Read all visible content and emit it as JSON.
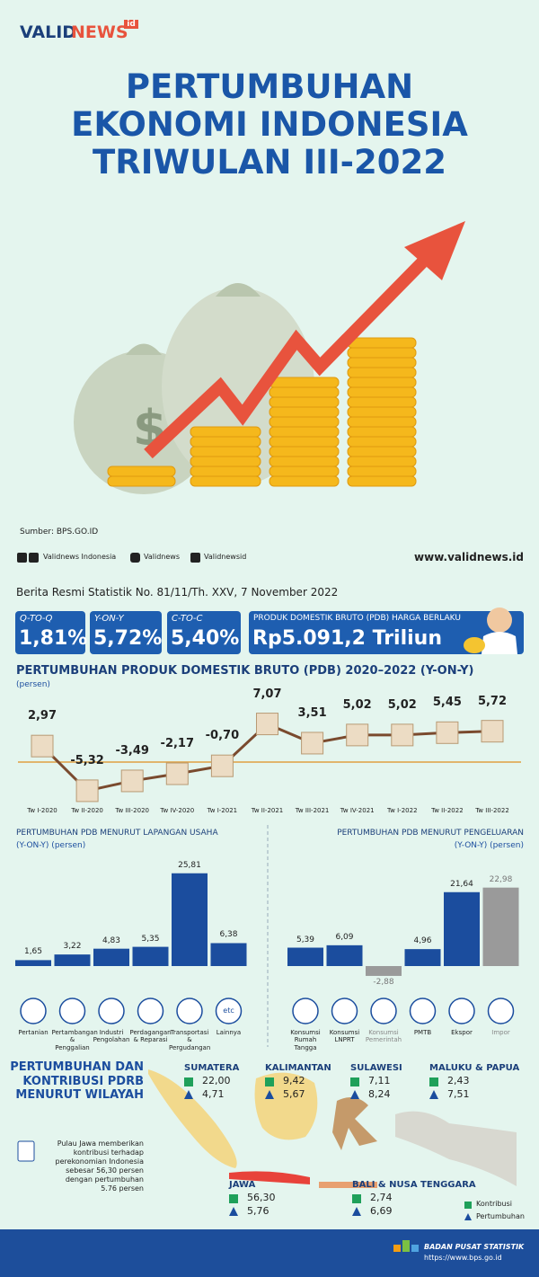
{
  "header": {
    "logo": [
      "VALID",
      "NEWS"
    ],
    "logo_badge": "id",
    "title": [
      "PERTUMBUHAN",
      "EKONOMI INDONESIA",
      "TRIWULAN III-2022"
    ]
  },
  "source": "Sumber: BPS.GO.ID",
  "social": [
    "Validnews Indonesia",
    "Validnews",
    "Validnewsid"
  ],
  "website": "www.validnews.id",
  "release": "Berita Resmi Statistik No. 81/11/Th. XXV, 7 November 2022",
  "indicators": [
    {
      "label": "Q-TO-Q",
      "value": "1,81%"
    },
    {
      "label": "Y-ON-Y",
      "value": "5,72%"
    },
    {
      "label": "C-TO-C",
      "value": "5,40%"
    },
    {
      "label": "PRODUK DOMESTIK BRUTO (PDB) HARGA BERLAKU",
      "value": "Rp5.091,2 Triliun"
    }
  ],
  "chart_data": [
    {
      "type": "line",
      "title": "PERTUMBUHAN PRODUK DOMESTIK BRUTO (PDB) 2020–2022 (Y-ON-Y)",
      "subtitle": "(persen)",
      "categories": [
        "Tw I-2020",
        "Tw II-2020",
        "Tw III-2020",
        "Tw IV-2020",
        "Tw I-2021",
        "Tw II-2021",
        "Tw III-2021",
        "Tw IV-2021",
        "Tw I-2022",
        "Tw II-2022",
        "Tw III-2022"
      ],
      "values": [
        2.97,
        -5.32,
        -3.49,
        -2.17,
        -0.7,
        7.07,
        3.51,
        5.02,
        5.02,
        5.45,
        5.72
      ],
      "value_labels": [
        "2,97",
        "-5,32",
        "-3,49",
        "-2,17",
        "-0,70",
        "7,07",
        "3,51",
        "5,02",
        "5,02",
        "5,45",
        "5,72"
      ],
      "color": "#7a4a2e"
    },
    {
      "type": "bar",
      "title": "PERTUMBUHAN PDB MENURUT LAPANGAN USAHA",
      "subtitle": "(Y-ON-Y) (persen)",
      "categories": [
        "Pertanian",
        "Pertambangan & Penggalian",
        "Industri Pengolahan",
        "Perdagangan & Reparasi",
        "Transportasi & Pergudangan",
        "Lainnya"
      ],
      "values": [
        1.65,
        3.22,
        4.83,
        5.35,
        25.81,
        6.38
      ],
      "value_labels": [
        "1,65",
        "3,22",
        "4,83",
        "5,35",
        "25,81",
        "6,38"
      ],
      "colors": [
        "#1b4d9e",
        "#1b4d9e",
        "#1b4d9e",
        "#1b4d9e",
        "#1b4d9e",
        "#1b4d9e"
      ],
      "icon_text": "etc"
    },
    {
      "type": "bar",
      "title": "PERTUMBUHAN PDB MENURUT PENGELUARAN",
      "subtitle": "(Y-ON-Y) (persen)",
      "categories": [
        "Konsumsi Rumah Tangga",
        "Konsumsi LNPRT",
        "Konsumsi Pemerintah",
        "PMTB",
        "Ekspor",
        "Impor"
      ],
      "values": [
        5.39,
        6.09,
        -2.88,
        4.96,
        21.64,
        22.98
      ],
      "value_labels": [
        "5,39",
        "6,09",
        "-2,88",
        "4,96",
        "21,64",
        "22,98"
      ],
      "colors": [
        "#1b4d9e",
        "#1b4d9e",
        "#9a9a9a",
        "#1b4d9e",
        "#1b4d9e",
        "#9a9a9a"
      ]
    }
  ],
  "region": {
    "title": "PERTUMBUHAN DAN KONTRIBUSI PDRB MENURUT WILAYAH",
    "note": "Pulau Jawa memberikan kontribusi terhadap perekonomian Indonesia sebesar 56,30 persen dengan pertumbuhan 5.76 persen",
    "regions": [
      {
        "name": "SUMATERA",
        "contribution": "22,00",
        "growth": "4,71"
      },
      {
        "name": "KALIMANTAN",
        "contribution": "9,42",
        "growth": "5,67"
      },
      {
        "name": "SULAWESI",
        "contribution": "7,11",
        "growth": "8,24"
      },
      {
        "name": "MALUKU & PAPUA",
        "contribution": "2,43",
        "growth": "7,51"
      },
      {
        "name": "JAWA",
        "contribution": "56,30",
        "growth": "5,76"
      },
      {
        "name": "BALI & NUSA TENGGARA",
        "contribution": "2,74",
        "growth": "6,69"
      }
    ],
    "legend": [
      "Kontribusi",
      "Pertumbuhan"
    ]
  },
  "footer": {
    "org": "BADAN PUSAT STATISTIK",
    "url": "https://www.bps.go.id"
  }
}
